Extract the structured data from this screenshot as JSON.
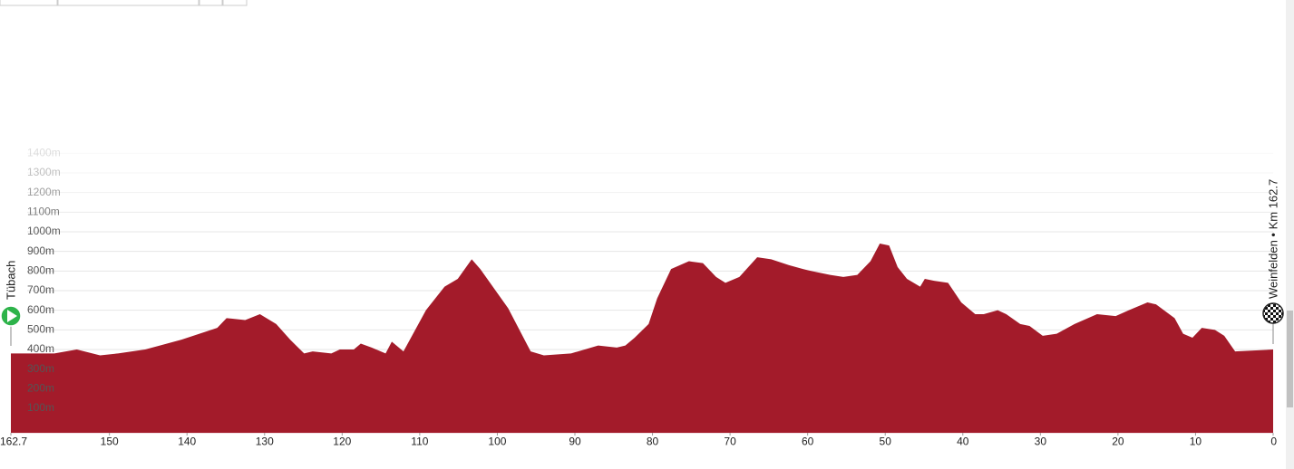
{
  "chart_data": {
    "type": "area",
    "start_label": "Tübach",
    "end_label": "Weinfelden • Km 162.7",
    "x": [
      162.7,
      157.1,
      154.2,
      151.2,
      148.9,
      145.4,
      140.7,
      136.1,
      134.9,
      132.5,
      130.6,
      128.5,
      126.7,
      124.9,
      123.8,
      121.4,
      120.3,
      118.5,
      117.6,
      116.2,
      114.4,
      113.6,
      112.1,
      109.2,
      106.8,
      105.1,
      103.3,
      102.2,
      98.6,
      95.7,
      94.0,
      90.5,
      87.0,
      84.6,
      83.5,
      82.3,
      80.5,
      79.4,
      77.6,
      75.3,
      73.5,
      71.8,
      70.6,
      68.8,
      66.5,
      64.7,
      62.4,
      60.6,
      59.5,
      57.1,
      55.4,
      53.6,
      51.9,
      50.7,
      49.5,
      48.4,
      47.2,
      45.5,
      44.9,
      43.7,
      41.9,
      40.2,
      38.4,
      37.3,
      35.5,
      34.4,
      32.6,
      31.4,
      29.7,
      27.9,
      25.6,
      22.7,
      20.3,
      18.6,
      16.2,
      15.1,
      12.7,
      11.6,
      10.4,
      9.2,
      7.5,
      6.3,
      4.9,
      0
    ],
    "values": [
      380,
      380,
      400,
      370,
      380,
      400,
      450,
      510,
      560,
      550,
      580,
      530,
      450,
      380,
      390,
      380,
      400,
      400,
      430,
      410,
      380,
      440,
      390,
      600,
      720,
      760,
      860,
      810,
      610,
      390,
      370,
      380,
      420,
      410,
      420,
      460,
      530,
      660,
      810,
      850,
      840,
      770,
      740,
      770,
      870,
      860,
      830,
      810,
      800,
      780,
      770,
      780,
      850,
      940,
      930,
      820,
      760,
      720,
      760,
      750,
      740,
      640,
      580,
      580,
      600,
      580,
      530,
      520,
      470,
      480,
      530,
      580,
      570,
      600,
      640,
      630,
      560,
      480,
      460,
      510,
      500,
      470,
      390,
      400
    ],
    "color": "#a31b2a",
    "xlim": [
      162.7,
      0
    ],
    "xticks": [
      162.7,
      150,
      140,
      130,
      120,
      110,
      100,
      90,
      80,
      70,
      60,
      50,
      40,
      30,
      20,
      10,
      0
    ],
    "ylim": [
      -25,
      1450
    ],
    "yticks": [
      {
        "value": 100,
        "label": "100m"
      },
      {
        "value": 200,
        "label": "200m"
      },
      {
        "value": 300,
        "label": "300m"
      },
      {
        "value": 400,
        "label": "400m"
      },
      {
        "value": 500,
        "label": "500m"
      },
      {
        "value": 600,
        "label": "600m"
      },
      {
        "value": 700,
        "label": "700m"
      },
      {
        "value": 800,
        "label": "800m"
      },
      {
        "value": 900,
        "label": "900m"
      },
      {
        "value": 1000,
        "label": "1000m"
      },
      {
        "value": 1100,
        "label": "1100m"
      },
      {
        "value": 1200,
        "label": "1200m"
      },
      {
        "value": 1300,
        "label": "1300m"
      },
      {
        "value": 1400,
        "label": "1400m"
      }
    ],
    "grid": true
  }
}
